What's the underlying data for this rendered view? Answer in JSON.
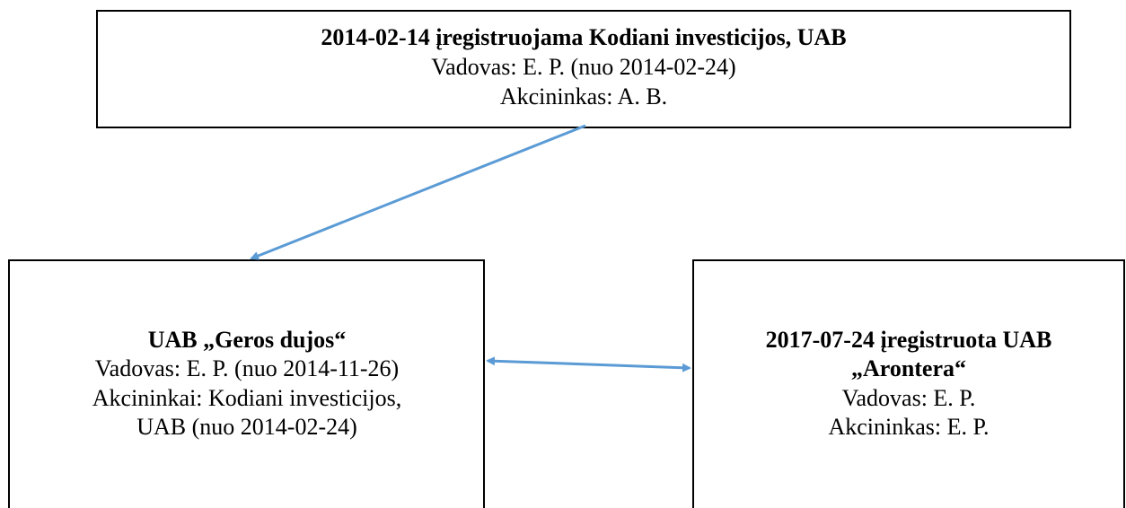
{
  "nodes": [
    {
      "lines": [
        "2014-02-14 įregistruojama Kodiani investicijos, UAB",
        "Vadovas: E. P. (nuo 2014-02-24)",
        "Akcininkas: A. B."
      ]
    },
    {
      "lines": [
        "UAB „Geros dujos“",
        "Vadovas: E. P. (nuo 2014-11-26)",
        "Akcininkai: Kodiani investicijos,",
        "UAB (nuo 2014-02-24)"
      ]
    },
    {
      "lines": [
        "2017-07-24 įregistruota UAB",
        "„Arontera“",
        "Vadovas: E. P.",
        "Akcininkas: E. P."
      ]
    }
  ]
}
